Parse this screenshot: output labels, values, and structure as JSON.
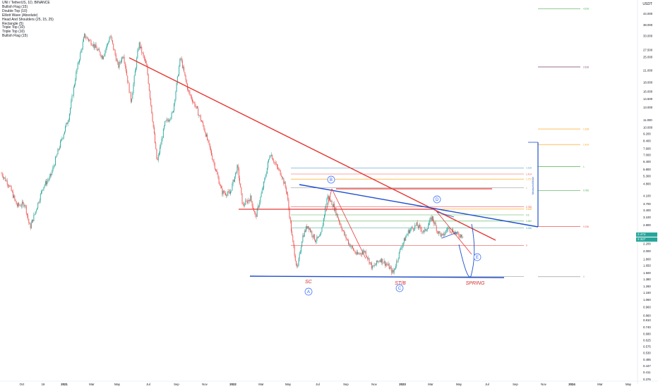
{
  "legend": {
    "symbol": "UNI / TetherUS, 1D, BINANCE",
    "indicators": [
      "Bullish Flag (15)",
      "Double Top (10)",
      "Elliott Wave (Absolute)",
      "Head And Shoulders (25, 15, 25)",
      "Rectangle (5)",
      "Triple Top (10)",
      "Triple Top (10)",
      "Bullish Flag (15)"
    ]
  },
  "price_scale": {
    "currency": "USDT",
    "current_price": "2.474",
    "current_price_sub": "2.327"
  },
  "chart_data": {
    "type": "candlestick",
    "symbol": "UNI / TetherUS",
    "interval": "1D",
    "exchange": "BINANCE",
    "y_scale": "log",
    "ylim": [
      0.37,
      48.0
    ],
    "y_ticks": [
      "44.000",
      "38.000",
      "33.000",
      "27.500",
      "25.000",
      "21.000",
      "18.000",
      "16.000",
      "14.500",
      "13.000",
      "11.000",
      "10.000",
      "9.200",
      "8.400",
      "7.600",
      "7.000",
      "6.400",
      "5.800",
      "5.300",
      "4.800",
      "4.100",
      "3.700",
      "3.400",
      "3.100",
      "2.800",
      "2.500",
      "2.200",
      "2.000",
      "1.800",
      "1.650",
      "1.500",
      "1.380",
      "1.260",
      "1.160",
      "1.060",
      "0.960",
      "0.860",
      "0.810",
      "0.740",
      "0.680",
      "0.625",
      "0.575",
      "0.530",
      "0.485",
      "0.447",
      "0.411",
      "0.376"
    ],
    "x_ticks": [
      "Oct",
      "16",
      "2021",
      "Mar",
      "May",
      "Jul",
      "Sep",
      "Nov",
      "2022",
      "Mar",
      "May",
      "Jul",
      "Sep",
      "Nov",
      "2023",
      "Mar",
      "May",
      "Jul",
      "Sep",
      "Nov",
      "2024",
      "Mar",
      "May"
    ],
    "price_path": [
      {
        "t": 0,
        "p": 5.5
      },
      {
        "t": 1.5,
        "p": 4.7
      },
      {
        "t": 3,
        "p": 3.6
      },
      {
        "t": 4.5,
        "p": 3.7
      },
      {
        "t": 5.5,
        "p": 2.7
      },
      {
        "t": 6.5,
        "p": 3.3
      },
      {
        "t": 8,
        "p": 4.6
      },
      {
        "t": 9.5,
        "p": 5.3
      },
      {
        "t": 11,
        "p": 7.5
      },
      {
        "t": 13,
        "p": 11.5
      },
      {
        "t": 14.5,
        "p": 21
      },
      {
        "t": 16,
        "p": 33
      },
      {
        "t": 17.5,
        "p": 30
      },
      {
        "t": 19.5,
        "p": 25
      },
      {
        "t": 21,
        "p": 33
      },
      {
        "t": 22.5,
        "p": 22
      },
      {
        "t": 23.5,
        "p": 26
      },
      {
        "t": 25,
        "p": 14
      },
      {
        "t": 26.5,
        "p": 30
      },
      {
        "t": 28,
        "p": 22
      },
      {
        "t": 29,
        "p": 12
      },
      {
        "t": 30,
        "p": 6.3
      },
      {
        "t": 31.5,
        "p": 10.5
      },
      {
        "t": 33,
        "p": 12
      },
      {
        "t": 34.5,
        "p": 25
      },
      {
        "t": 36,
        "p": 16
      },
      {
        "t": 37.5,
        "p": 13
      },
      {
        "t": 39,
        "p": 10
      },
      {
        "t": 40.5,
        "p": 7
      },
      {
        "t": 41.5,
        "p": 5.5
      },
      {
        "t": 42.5,
        "p": 4.3
      },
      {
        "t": 44,
        "p": 4.2
      },
      {
        "t": 45.5,
        "p": 6.0
      },
      {
        "t": 46.5,
        "p": 3.6
      },
      {
        "t": 48,
        "p": 4.0
      },
      {
        "t": 49,
        "p": 3.1
      },
      {
        "t": 50.5,
        "p": 4.7
      },
      {
        "t": 51.8,
        "p": 7.2
      },
      {
        "t": 53,
        "p": 6.0
      },
      {
        "t": 54,
        "p": 5.4
      },
      {
        "t": 55,
        "p": 4.3
      },
      {
        "t": 56,
        "p": 2.4
      },
      {
        "t": 57,
        "p": 1.55
      },
      {
        "t": 58,
        "p": 2.4
      },
      {
        "t": 59,
        "p": 2.8
      },
      {
        "t": 60.5,
        "p": 2.3
      },
      {
        "t": 61.5,
        "p": 2.4
      },
      {
        "t": 62.8,
        "p": 4.1
      },
      {
        "t": 64,
        "p": 3.6
      },
      {
        "t": 65,
        "p": 3.0
      },
      {
        "t": 66,
        "p": 2.5
      },
      {
        "t": 67,
        "p": 2.2
      },
      {
        "t": 68.5,
        "p": 1.9
      },
      {
        "t": 70,
        "p": 2.0
      },
      {
        "t": 71.5,
        "p": 1.6
      },
      {
        "t": 73,
        "p": 1.8
      },
      {
        "t": 74.5,
        "p": 1.65
      },
      {
        "t": 75.5,
        "p": 1.5
      },
      {
        "t": 77,
        "p": 2.1
      },
      {
        "t": 78.5,
        "p": 2.6
      },
      {
        "t": 80,
        "p": 2.8
      },
      {
        "t": 81.5,
        "p": 2.55
      },
      {
        "t": 83,
        "p": 3.1
      },
      {
        "t": 84,
        "p": 2.6
      },
      {
        "t": 85,
        "p": 2.4
      },
      {
        "t": 86,
        "p": 2.7
      },
      {
        "t": 87,
        "p": 2.6
      },
      {
        "t": 88,
        "p": 2.45
      },
      {
        "t": 89,
        "p": 2.47
      }
    ],
    "annotations": {
      "labels": [
        "SC",
        "ST/B",
        "SPRING",
        "Measured Move"
      ],
      "waves": [
        "A",
        "B",
        "C",
        "D",
        "E"
      ]
    },
    "fib_levels_left": [
      "1.618",
      "1.414",
      "1.272",
      "1",
      "0.786",
      "0.618",
      "0.5",
      "0.382",
      "0.236",
      "0"
    ],
    "fib_levels_right": [
      "4.618",
      "3.618",
      "2.618",
      "1.618",
      "1",
      "0.786",
      "0.618",
      "0.5",
      "0.382",
      "0.236",
      "0"
    ]
  },
  "colors": {
    "up": "#26a69a",
    "down": "#ef5350",
    "trend_red": "#e53935",
    "trend_blue": "#1e4fcf",
    "annotation_red": "#d32f2f",
    "wave_blue": "#2962ff"
  }
}
